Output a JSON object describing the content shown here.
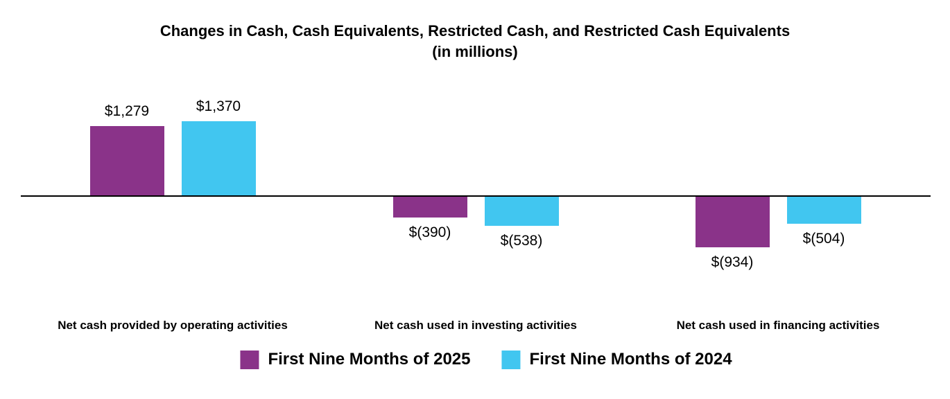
{
  "title": "Changes in Cash, Cash Equivalents, Restricted Cash, and Restricted Cash Equivalents",
  "subtitle": "(in millions)",
  "colors": {
    "series_2025": "#8A3389",
    "series_2024": "#41C6F0",
    "axis": "#000000",
    "text": "#000000",
    "background": "#FFFFFF"
  },
  "legend": {
    "items": [
      {
        "label": "First Nine Months of 2025",
        "color": "#8A3389"
      },
      {
        "label": "First Nine Months of 2024",
        "color": "#41C6F0"
      }
    ]
  },
  "chart_data": {
    "type": "bar",
    "title": "Changes in Cash, Cash Equivalents, Restricted Cash, and Restricted Cash Equivalents",
    "subtitle": "(in millions)",
    "categories": [
      "Net cash provided by operating activities",
      "Net cash used in investing activities",
      "Net cash used in financing activities"
    ],
    "category_slugs": [
      "operating",
      "investing",
      "financing"
    ],
    "series": [
      {
        "name": "First Nine Months of 2025",
        "slug": "2025",
        "color": "#8A3389",
        "values": [
          1279,
          -390,
          -934
        ],
        "labels": [
          "$1,279",
          "$(390)",
          "$(934)"
        ]
      },
      {
        "name": "First Nine Months of 2024",
        "slug": "2024",
        "color": "#41C6F0",
        "values": [
          1370,
          -538,
          -504
        ],
        "labels": [
          "$1,370",
          "$(538)",
          "$(504)"
        ]
      }
    ],
    "y_axis_visible": false,
    "x_axis_line": true,
    "grid": false,
    "value_labels_shown": true,
    "legend_position": "bottom",
    "units": "millions USD"
  }
}
